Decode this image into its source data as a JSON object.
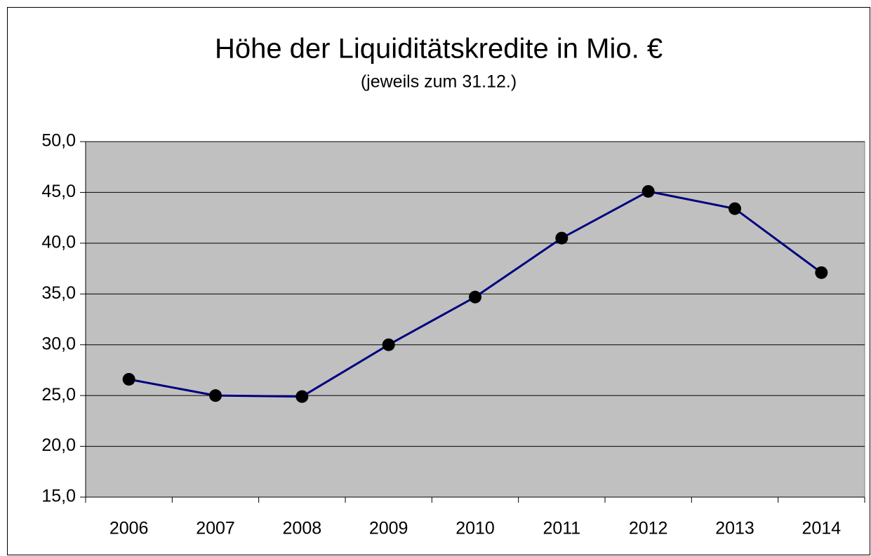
{
  "chart_data": {
    "type": "line",
    "title": "Höhe der Liquiditätskredite in Mio. €",
    "subtitle": "(jeweils zum 31.12.)",
    "categories": [
      "2006",
      "2007",
      "2008",
      "2009",
      "2010",
      "2011",
      "2012",
      "2013",
      "2014"
    ],
    "series": [
      {
        "name": "Liquiditätskredite",
        "color": "#000080",
        "marker_color": "#000000",
        "values": [
          26.6,
          25.0,
          24.9,
          30.0,
          34.7,
          40.5,
          45.1,
          43.4,
          37.1
        ]
      }
    ],
    "ylim": [
      15,
      50
    ],
    "yticks": [
      {
        "value": 15,
        "label": "15,0"
      },
      {
        "value": 20,
        "label": "20,0"
      },
      {
        "value": 25,
        "label": "25,0"
      },
      {
        "value": 30,
        "label": "30,0"
      },
      {
        "value": 35,
        "label": "35,0"
      },
      {
        "value": 40,
        "label": "40,0"
      },
      {
        "value": 45,
        "label": "45,0"
      },
      {
        "value": 50,
        "label": "50,0"
      }
    ],
    "grid": true,
    "plot_background": "#c0c0c0"
  }
}
